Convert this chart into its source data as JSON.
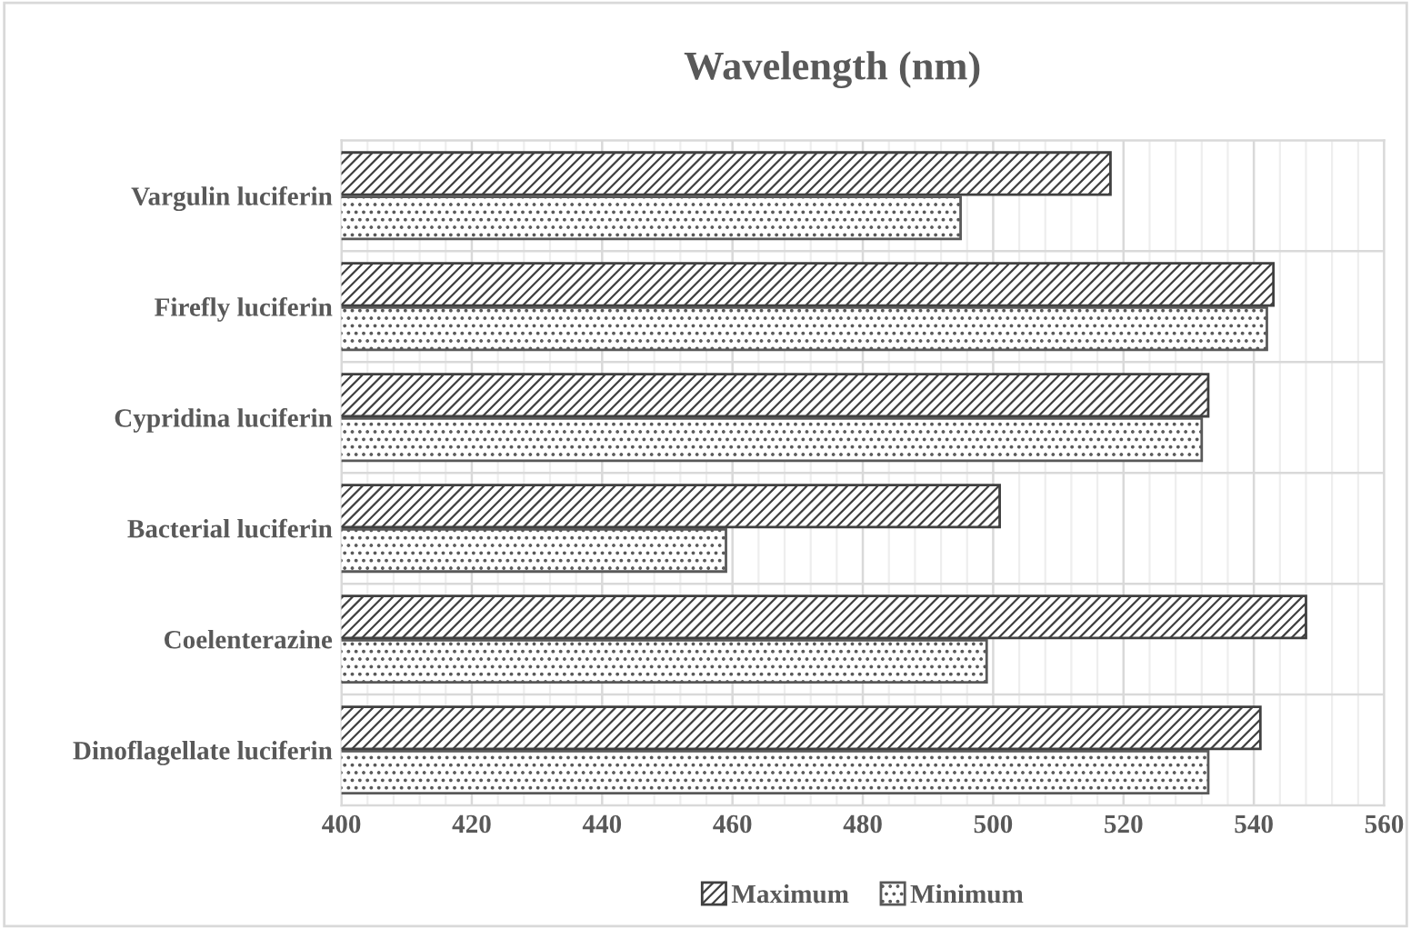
{
  "chart_data": {
    "type": "bar",
    "orientation": "horizontal",
    "title": "Wavelength (nm)",
    "categories": [
      "Vargulin luciferin",
      "Firefly luciferin",
      "Cypridina luciferin",
      "Bacterial luciferin",
      "Coelenterazine",
      "Dinoflagellate luciferin"
    ],
    "series": [
      {
        "name": "Maximum",
        "color": "#404040",
        "values": [
          518,
          543,
          533,
          501,
          548,
          541
        ]
      },
      {
        "name": "Minimum",
        "color": "#595959",
        "values": [
          495,
          542,
          532,
          459,
          499,
          533
        ]
      }
    ],
    "xlim": [
      400,
      560
    ],
    "xticks": [
      400,
      420,
      440,
      460,
      480,
      500,
      520,
      540,
      560
    ],
    "grid": true,
    "legend": "bottom"
  }
}
